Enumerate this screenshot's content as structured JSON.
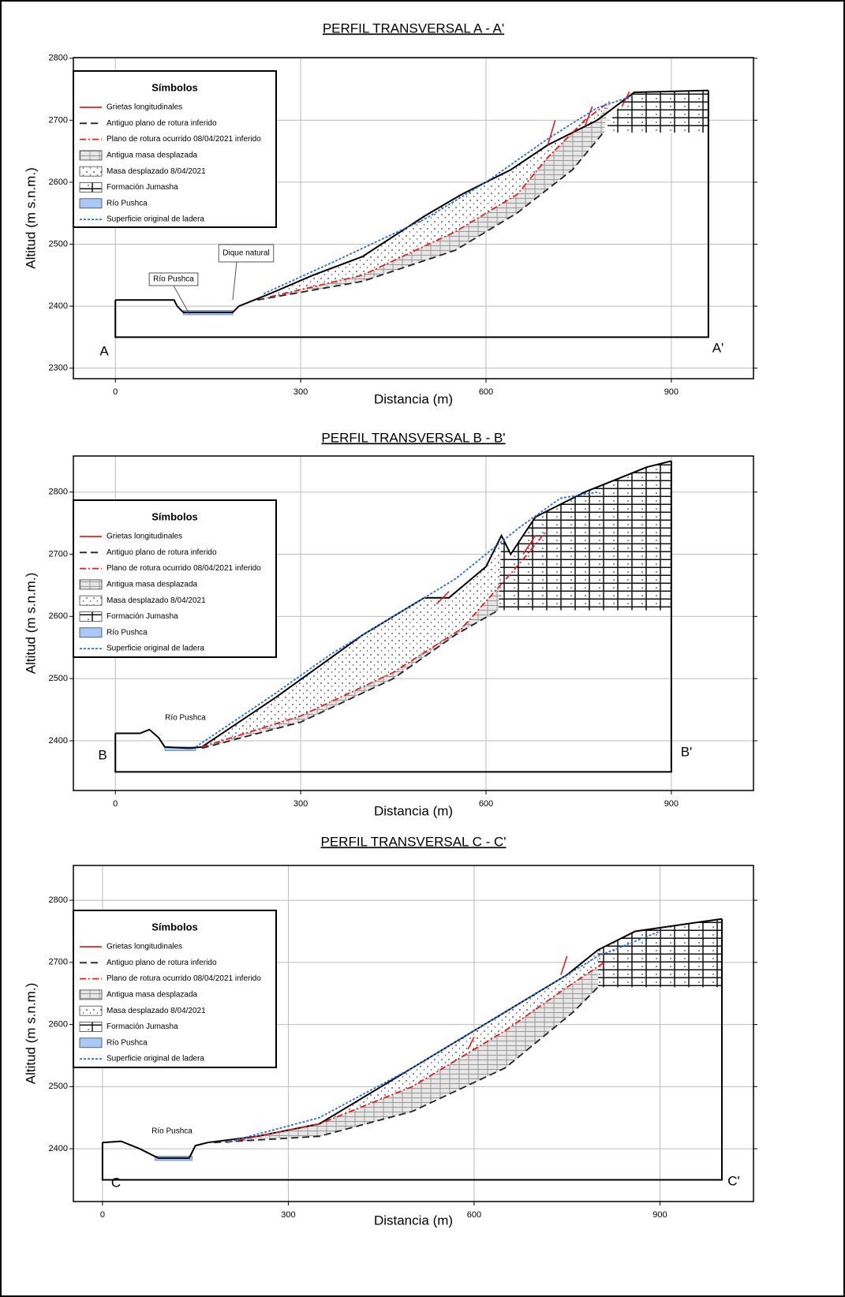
{
  "chart_data": [
    {
      "type": "profile",
      "title": "PERFIL TRANSVERSAL A - A'",
      "x_label": "Distancia (m)",
      "y_label": "Altitud (m s.n.m.)",
      "legend_title": "Símbolos",
      "start_label": "A",
      "end_label": "A'",
      "annotations": [
        "Río Pushca",
        "Dique natural"
      ],
      "xlim": [
        -68,
        1033
      ],
      "ylim": [
        2283,
        2801
      ],
      "xticks": [
        0,
        300,
        600,
        900
      ],
      "yticks": [
        2300,
        2400,
        2500,
        2600,
        2700,
        2800
      ],
      "grid": true,
      "base": 2350,
      "surface": {
        "x": [
          0,
          95,
          100,
          110,
          190,
          200,
          250,
          320,
          400,
          500,
          560,
          640,
          700,
          780,
          820,
          840,
          960
        ],
        "values": [
          2410,
          2410,
          2400,
          2390,
          2390,
          2400,
          2420,
          2450,
          2480,
          2545,
          2580,
          2620,
          2660,
          2700,
          2730,
          2745,
          2748
        ]
      },
      "river": {
        "x": [
          110,
          190
        ],
        "level": 2393
      },
      "series": [
        {
          "name": "Grietas longitudinales",
          "color": "#e02020",
          "style": "solid",
          "x": [
            700,
            712,
            null,
            760,
            772,
            null,
            820,
            832
          ],
          "values": [
            2660,
            2700,
            null,
            2690,
            2722,
            null,
            2722,
            2746
          ]
        },
        {
          "name": "Antiguo plano de rotura inferido",
          "color": "#222222",
          "style": "dashed",
          "x": [
            230,
            400,
            550,
            650,
            740,
            790
          ],
          "values": [
            2410,
            2440,
            2490,
            2550,
            2620,
            2680
          ]
        },
        {
          "name": "Plano de rotura ocurrido 08/04/2021 inferido",
          "color": "#e02020",
          "style": "dashdot",
          "x": [
            250,
            400,
            550,
            650,
            700,
            760,
            800
          ],
          "values": [
            2415,
            2450,
            2520,
            2580,
            2640,
            2700,
            2730
          ]
        },
        {
          "name": "Superficie original de ladera",
          "color": "#2a6fd6",
          "style": "dotted",
          "x": [
            240,
            350,
            500,
            600,
            700,
            780,
            840
          ],
          "values": [
            2420,
            2470,
            2540,
            2600,
            2670,
            2720,
            2740
          ]
        }
      ],
      "areas": [
        {
          "name": "Antigua masa desplazada",
          "color": "#cccccc",
          "pattern": "lines"
        },
        {
          "name": "Masa desplazado 8/04/2021",
          "color": "#ffffff",
          "pattern": "dots"
        },
        {
          "name": "Formación Jumasha",
          "color": "#222222",
          "pattern": "bricks"
        },
        {
          "name": "Río Pushca",
          "color": "#a9c8f5",
          "pattern": "none"
        }
      ]
    },
    {
      "type": "profile",
      "title": "PERFIL TRANSVERSAL B - B'",
      "x_label": "Distancia (m)",
      "y_label": "Altitud (m s.n.m.)",
      "legend_title": "Símbolos",
      "start_label": "B",
      "end_label": "B'",
      "annotations": [
        "Río Pushca"
      ],
      "xlim": [
        -68,
        1033
      ],
      "ylim": [
        2320,
        2858
      ],
      "xticks": [
        0,
        300,
        600,
        900
      ],
      "yticks": [
        2400,
        2500,
        2600,
        2700,
        2800
      ],
      "grid": true,
      "base": 2350,
      "surface": {
        "x": [
          0,
          40,
          55,
          70,
          80,
          120,
          140,
          200,
          260,
          330,
          400,
          500,
          540,
          600,
          625,
          640,
          680,
          760,
          860,
          900
        ],
        "values": [
          2412,
          2412,
          2418,
          2405,
          2390,
          2388,
          2390,
          2430,
          2470,
          2520,
          2570,
          2630,
          2630,
          2680,
          2730,
          2700,
          2760,
          2800,
          2840,
          2850
        ]
      },
      "river": {
        "x": [
          80,
          130
        ],
        "level": 2390
      },
      "series": [
        {
          "name": "Grietas longitudinales",
          "color": "#e02020",
          "style": "solid",
          "x": [
            520,
            540,
            null,
            660,
            680
          ],
          "values": [
            2620,
            2640,
            null,
            2700,
            2730
          ]
        },
        {
          "name": "Antiguo plano de rotura inferido",
          "color": "#222222",
          "style": "dashed",
          "x": [
            140,
            300,
            450,
            550,
            620
          ],
          "values": [
            2388,
            2430,
            2500,
            2570,
            2610
          ]
        },
        {
          "name": "Plano de rotura ocurrido 08/04/2021 inferido",
          "color": "#e02020",
          "style": "dashdot",
          "x": [
            140,
            300,
            450,
            560,
            650,
            700
          ],
          "values": [
            2390,
            2440,
            2510,
            2580,
            2680,
            2740
          ]
        },
        {
          "name": "Superficie original de ladera",
          "color": "#2a6fd6",
          "style": "dotted",
          "x": [
            130,
            250,
            350,
            450,
            550,
            650,
            720,
            780
          ],
          "values": [
            2390,
            2470,
            2540,
            2600,
            2660,
            2740,
            2790,
            2800
          ]
        }
      ],
      "areas": [
        {
          "name": "Antigua masa desplazada",
          "color": "#cccccc",
          "pattern": "lines"
        },
        {
          "name": "Masa desplazado 8/04/2021",
          "color": "#ffffff",
          "pattern": "dots"
        },
        {
          "name": "Formación Jumasha",
          "color": "#222222",
          "pattern": "bricks"
        },
        {
          "name": "Río Pushca",
          "color": "#a9c8f5",
          "pattern": "none"
        }
      ]
    },
    {
      "type": "profile",
      "title": "PERFIL TRANSVERSAL C - C'",
      "x_label": "Distancia (m)",
      "y_label": "Altitud (m s.n.m.)",
      "legend_title": "Símbolos",
      "start_label": "C",
      "end_label": "C'",
      "annotations": [
        "Río Pushca"
      ],
      "xlim": [
        -47,
        1051
      ],
      "ylim": [
        2315,
        2856
      ],
      "xticks": [
        0,
        300,
        600,
        900
      ],
      "yticks": [
        2400,
        2500,
        2600,
        2700,
        2800
      ],
      "grid": true,
      "base": 2350,
      "surface": {
        "x": [
          0,
          30,
          60,
          90,
          140,
          150,
          170,
          250,
          350,
          450,
          550,
          650,
          750,
          800,
          860,
          1000
        ],
        "values": [
          2410,
          2412,
          2400,
          2385,
          2385,
          2405,
          2410,
          2420,
          2440,
          2500,
          2560,
          2620,
          2680,
          2720,
          2750,
          2770
        ]
      },
      "river": {
        "x": [
          85,
          145
        ],
        "level": 2388
      },
      "series": [
        {
          "name": "Grietas longitudinales",
          "color": "#e02020",
          "style": "solid",
          "x": [
            590,
            600,
            null,
            740,
            750
          ],
          "values": [
            2560,
            2580,
            null,
            2680,
            2710
          ]
        },
        {
          "name": "Antiguo plano de rotura inferido",
          "color": "#222222",
          "style": "dashed",
          "x": [
            180,
            350,
            500,
            650,
            760,
            800
          ],
          "values": [
            2410,
            2420,
            2460,
            2530,
            2620,
            2660
          ]
        },
        {
          "name": "Plano de rotura ocurrido 08/04/2021 inferido",
          "color": "#e02020",
          "style": "dashdot",
          "x": [
            200,
            350,
            500,
            650,
            750,
            810
          ],
          "values": [
            2410,
            2440,
            2500,
            2590,
            2660,
            2700
          ]
        },
        {
          "name": "Superficie original de ladera",
          "color": "#2a6fd6",
          "style": "dotted",
          "x": [
            200,
            350,
            500,
            650,
            800,
            900
          ],
          "values": [
            2410,
            2450,
            2530,
            2620,
            2710,
            2750
          ]
        }
      ],
      "areas": [
        {
          "name": "Antigua masa desplazada",
          "color": "#cccccc",
          "pattern": "lines"
        },
        {
          "name": "Masa desplazado 8/04/2021",
          "color": "#ffffff",
          "pattern": "dots"
        },
        {
          "name": "Formación Jumasha",
          "color": "#222222",
          "pattern": "bricks"
        },
        {
          "name": "Río Pushca",
          "color": "#a9c8f5",
          "pattern": "none"
        }
      ]
    }
  ]
}
